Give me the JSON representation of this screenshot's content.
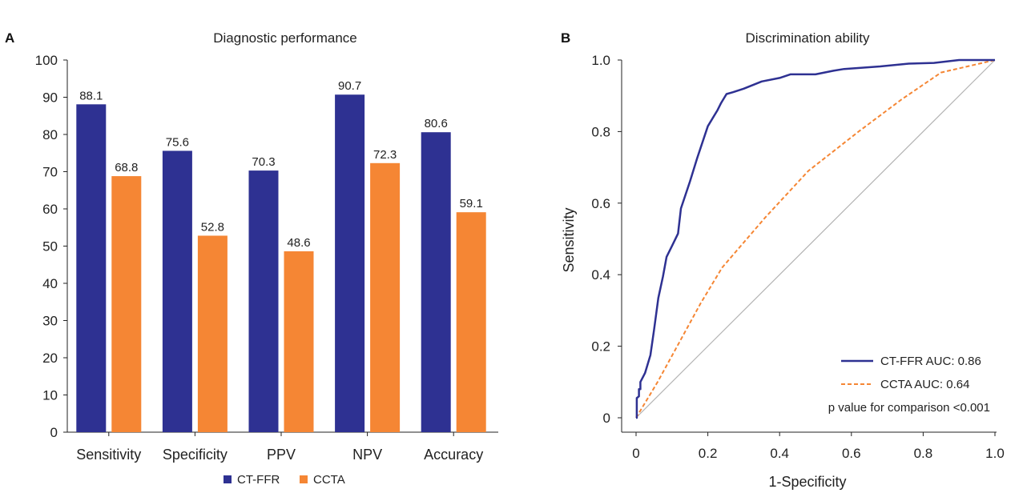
{
  "colors": {
    "ctffr": "#2e3192",
    "ccta": "#f58634",
    "diag": "#b3b3b3",
    "axis": "#222222"
  },
  "chart_data": [
    {
      "panel": "A",
      "type": "bar",
      "title": "Diagnostic performance",
      "categories": [
        "Sensitivity",
        "Specificity",
        "PPV",
        "NPV",
        "Accuracy"
      ],
      "series": [
        {
          "name": "CT-FFR",
          "values": [
            88.1,
            75.6,
            70.3,
            90.7,
            80.6
          ],
          "labels": [
            "88.1",
            "75.6",
            "70.3",
            "90.7",
            "80.6"
          ]
        },
        {
          "name": "CCTA",
          "values": [
            68.8,
            52.8,
            48.6,
            72.3,
            59.1
          ],
          "labels": [
            "68.8",
            "52.8",
            "48.6",
            "72.3",
            "59.1"
          ]
        }
      ],
      "ylim": [
        0,
        100
      ],
      "yticks": [
        0,
        10,
        20,
        30,
        40,
        50,
        60,
        70,
        80,
        90,
        100
      ],
      "ytick_labels": [
        "0",
        "10",
        "20",
        "30",
        "40",
        "50",
        "60",
        "70",
        "80",
        "90",
        "100"
      ],
      "legend_position": "bottom-center"
    },
    {
      "panel": "B",
      "type": "line",
      "title": "Discrimination ability",
      "xlabel": "1-Specificity",
      "ylabel": "Sensitivity",
      "xlim": [
        0,
        1
      ],
      "ylim": [
        0,
        1
      ],
      "xticks": [
        0,
        0.2,
        0.4,
        0.6,
        0.8,
        1.0
      ],
      "xtick_labels": [
        "0",
        "0.2",
        "0.4",
        "0.6",
        "0.8",
        "1.0"
      ],
      "yticks": [
        0,
        0.2,
        0.4,
        0.6,
        0.8,
        1.0
      ],
      "ytick_labels": [
        "0",
        "0.2",
        "0.4",
        "0.6",
        "0.8",
        "1.0"
      ],
      "series": [
        {
          "name": "CT-FFR AUC: 0.86",
          "x": [
            0,
            0.002,
            0.002,
            0.008,
            0.008,
            0.012,
            0.012,
            0.025,
            0.04,
            0.05,
            0.062,
            0.075,
            0.085,
            0.1,
            0.117,
            0.125,
            0.15,
            0.17,
            0.2,
            0.227,
            0.237,
            0.252,
            0.27,
            0.3,
            0.35,
            0.4,
            0.43,
            0.5,
            0.55,
            0.58,
            0.68,
            0.76,
            0.83,
            0.9,
            1.0
          ],
          "y": [
            0,
            0,
            0.055,
            0.06,
            0.08,
            0.08,
            0.1,
            0.125,
            0.175,
            0.245,
            0.335,
            0.395,
            0.45,
            0.48,
            0.515,
            0.585,
            0.66,
            0.725,
            0.815,
            0.86,
            0.88,
            0.905,
            0.91,
            0.92,
            0.94,
            0.95,
            0.96,
            0.96,
            0.97,
            0.975,
            0.982,
            0.99,
            0.992,
            1.0,
            1.0
          ]
        },
        {
          "name": "CCTA AUC: 0.64",
          "dashed": true,
          "x": [
            0,
            0.06,
            0.12,
            0.18,
            0.24,
            0.36,
            0.48,
            0.62,
            0.74,
            0.85,
            1.0
          ],
          "y": [
            0,
            0.1,
            0.21,
            0.32,
            0.42,
            0.56,
            0.69,
            0.8,
            0.89,
            0.965,
            1.0
          ]
        },
        {
          "name": "reference",
          "x": [
            0,
            1
          ],
          "y": [
            0,
            1
          ],
          "no_legend": true
        }
      ],
      "annotation": "p value for comparison <0.001",
      "legend_position": "bottom-right"
    }
  ]
}
